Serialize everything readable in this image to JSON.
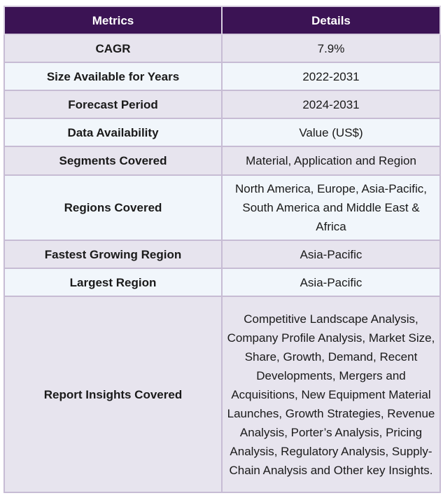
{
  "table": {
    "headers": [
      "Metrics",
      "Details"
    ],
    "rows": [
      {
        "metric": "CAGR",
        "detail": "7.9%"
      },
      {
        "metric": "Size Available for Years",
        "detail": "2022-2031"
      },
      {
        "metric": "Forecast Period",
        "detail": "2024-2031"
      },
      {
        "metric": "Data Availability",
        "detail": "Value (US$)"
      },
      {
        "metric": "Segments Covered",
        "detail": "Material, Application and Region"
      },
      {
        "metric": "Regions Covered",
        "detail": "North America, Europe, Asia-Pacific, South America and Middle East & Africa"
      },
      {
        "metric": "Fastest Growing Region",
        "detail": "Asia-Pacific"
      },
      {
        "metric": "Largest Region",
        "detail": "Asia-Pacific"
      },
      {
        "metric": "Report Insights Covered",
        "detail": "Competitive Landscape Analysis, Company Profile Analysis, Market Size, Share, Growth, Demand, Recent Developments, Mergers and Acquisitions, New Equipment Material Launches, Growth Strategies, Revenue Analysis, Porter’s Analysis, Pricing Analysis, Regulatory Analysis, Supply-Chain Analysis and Other key Insights."
      }
    ]
  }
}
